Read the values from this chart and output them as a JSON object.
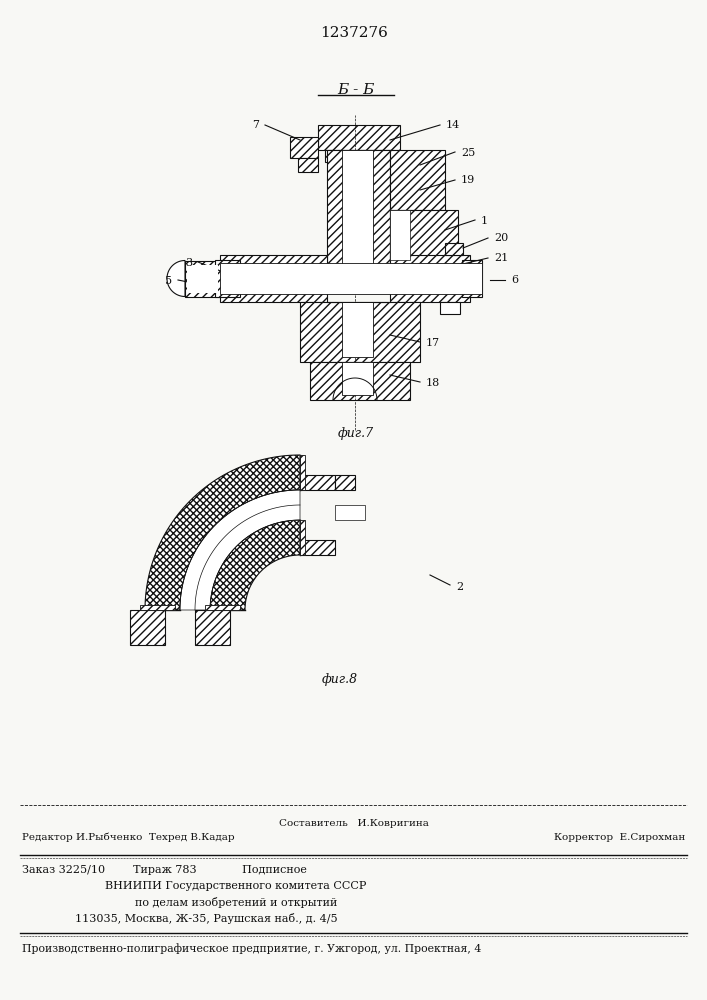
{
  "patent_number": "1237276",
  "fig7_label": "фиг.7",
  "fig8_label": "фиг.8",
  "section_label": "Б - Б",
  "bg_color": "#f8f8f5",
  "text_color": "#111111",
  "hatch_color": "#333333",
  "footer_line1_center": "Составитель   И.Ковригина",
  "footer_line1_left": "Редактор И.Рыбченко  Техред В.Кадар",
  "footer_line1_right": "Корректор  Е.Сирохман",
  "footer_line2": "Заказ 3225/10        Тираж 783             Подписное",
  "footer_line3": "ВНИИПИ Государственного комитета СССР",
  "footer_line4": "по делам изобретений и открытий",
  "footer_line5": "113035, Москва, Ж-35, Раушская наб., д. 4/5",
  "footer_line6": "Производственно-полиграфическое предприятие, г. Ужгород, ул. Проектная, 4"
}
